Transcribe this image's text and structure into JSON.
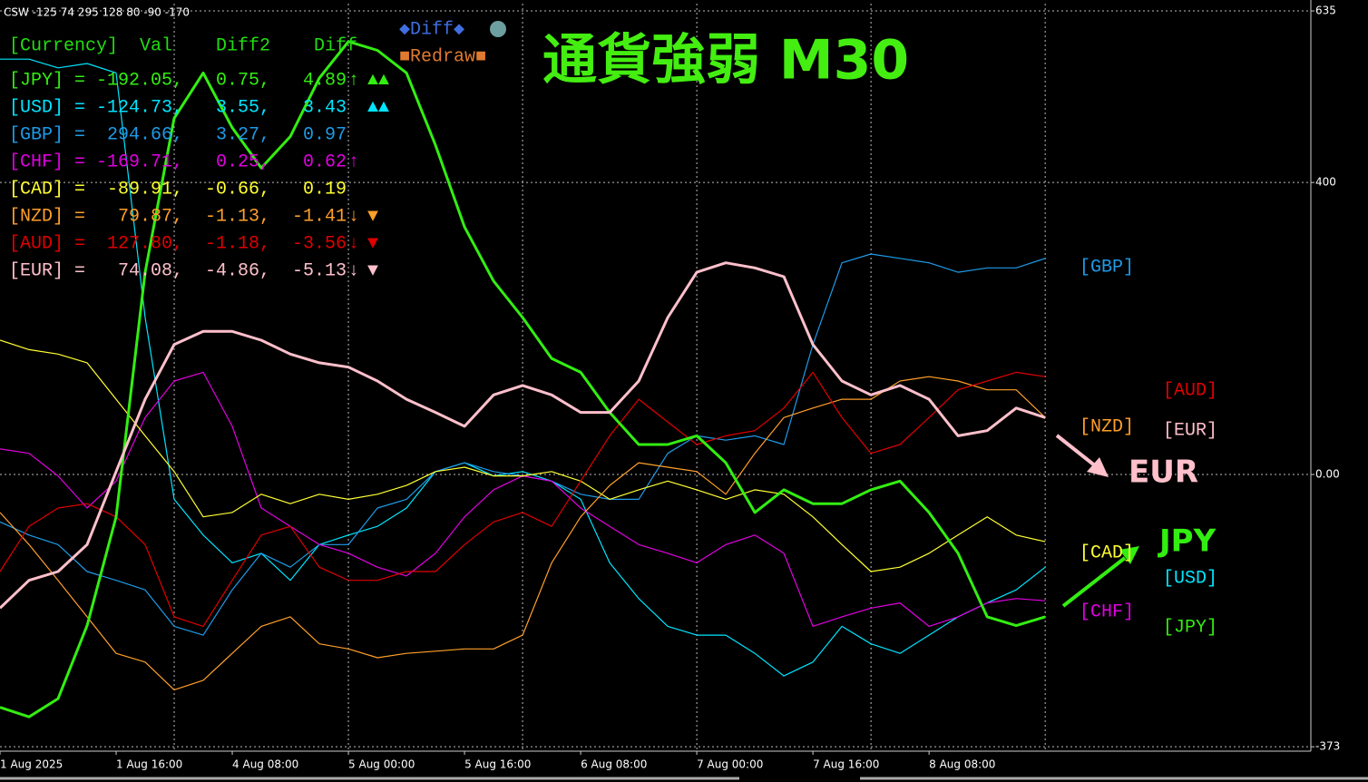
{
  "chart_data": {
    "type": "line",
    "header": "CSW -125 74 295 128 80 -90 -170",
    "title": "通貨強弱 M30",
    "x": [
      0,
      4,
      8,
      12,
      16,
      20,
      24,
      28,
      32,
      36,
      40,
      44,
      48,
      52,
      56,
      60,
      64,
      68,
      72,
      76,
      80,
      84,
      88,
      92,
      96,
      100,
      104,
      108,
      112,
      116,
      120,
      124,
      128,
      132,
      136,
      140,
      144
    ],
    "xlim": [
      0,
      180.6
    ],
    "xticks": [
      {
        "value": 0,
        "label": "1 Aug 2025"
      },
      {
        "value": 16,
        "label": "1 Aug 16:00"
      },
      {
        "value": 32,
        "label": "4 Aug 08:00"
      },
      {
        "value": 48,
        "label": "5 Aug 00:00"
      },
      {
        "value": 64,
        "label": "5 Aug 16:00"
      },
      {
        "value": 80,
        "label": "6 Aug 08:00"
      },
      {
        "value": 96,
        "label": "7 Aug 00:00"
      },
      {
        "value": 112,
        "label": "7 Aug 16:00"
      },
      {
        "value": 128,
        "label": "8 Aug 08:00"
      }
    ],
    "xgrid": [
      24,
      48,
      72,
      96,
      120,
      144
    ],
    "ylim": [
      -379,
      645
    ],
    "yticks": [
      635,
      400,
      {
        "value": 0,
        "label": "0.00"
      },
      -373
    ],
    "grid": true,
    "series": [
      {
        "name": "[JPY]",
        "color": "#33ee11",
        "values": [
          -319,
          -332,
          -307,
          -207,
          -58,
          277,
          488,
          550,
          475,
          420,
          463,
          543,
          593,
          581,
          550,
          451,
          339,
          265,
          215,
          159,
          140,
          85,
          41,
          41,
          53,
          16,
          -52,
          -21,
          -40,
          -40,
          -21,
          -9,
          -52,
          -108,
          -195,
          -207,
          -195
        ]
      },
      {
        "name": "[USD]",
        "color": "#00e5ff",
        "values": [
          569,
          569,
          557,
          563,
          550,
          215,
          -34,
          -83,
          -121,
          -108,
          -145,
          -96,
          -83,
          -71,
          -46,
          4,
          16,
          -2,
          4,
          -9,
          -34,
          -121,
          -170,
          -208,
          -220,
          -220,
          -245,
          -276,
          -257,
          -208,
          -232,
          -245,
          -220,
          -195,
          -176,
          -158,
          -127
        ]
      },
      {
        "name": "[GBP]",
        "color": "#1e9be8",
        "values": [
          -65,
          -83,
          -96,
          -133,
          -145,
          -158,
          -208,
          -220,
          -158,
          -108,
          -127,
          -96,
          -96,
          -46,
          -34,
          4,
          16,
          4,
          -2,
          -9,
          -27,
          -34,
          -34,
          29,
          53,
          47,
          53,
          41,
          178,
          290,
          302,
          296,
          290,
          277,
          283,
          283,
          296
        ]
      },
      {
        "name": "[CHF]",
        "color": "#e100e1",
        "values": [
          35,
          29,
          -2,
          -46,
          -9,
          78,
          128,
          140,
          66,
          -46,
          -71,
          -96,
          -108,
          -127,
          -139,
          -108,
          -58,
          -21,
          -2,
          -9,
          -46,
          -71,
          -96,
          -108,
          -121,
          -96,
          -83,
          -108,
          -208,
          -195,
          -183,
          -176,
          -208,
          -195,
          -176,
          -170,
          -173
        ]
      },
      {
        "name": "[CAD]",
        "color": "#ffff33",
        "values": [
          184,
          171,
          165,
          153,
          103,
          53,
          4,
          -58,
          -52,
          -27,
          -40,
          -27,
          -34,
          -27,
          -15,
          4,
          10,
          -2,
          -2,
          4,
          -9,
          -34,
          -21,
          -9,
          -21,
          -34,
          -21,
          -27,
          -58,
          -96,
          -133,
          -127,
          -108,
          -83,
          -58,
          -83,
          -92
        ]
      },
      {
        "name": "[NZD]",
        "color": "#ff9f2a",
        "values": [
          -52,
          -96,
          -145,
          -195,
          -245,
          -257,
          -295,
          -282,
          -245,
          -208,
          -195,
          -232,
          -239,
          -251,
          -245,
          -242,
          -239,
          -239,
          -220,
          -121,
          -58,
          -15,
          16,
          10,
          4,
          -27,
          29,
          78,
          91,
          103,
          103,
          128,
          134,
          128,
          116,
          116,
          78
        ]
      },
      {
        "name": "[AUD]",
        "color": "#e00000",
        "values": [
          -133,
          -71,
          -46,
          -40,
          -58,
          -96,
          -195,
          -208,
          -145,
          -83,
          -71,
          -127,
          -145,
          -145,
          -133,
          -133,
          -96,
          -65,
          -52,
          -71,
          -9,
          53,
          103,
          72,
          41,
          53,
          60,
          91,
          140,
          78,
          29,
          41,
          78,
          116,
          128,
          140,
          134
        ]
      },
      {
        "name": "[EUR]",
        "color": "#ffc0cb",
        "values": [
          -183,
          -145,
          -133,
          -96,
          4,
          103,
          178,
          196,
          196,
          184,
          165,
          153,
          147,
          128,
          103,
          85,
          66,
          109,
          122,
          109,
          85,
          85,
          128,
          215,
          277,
          290,
          283,
          271,
          178,
          128,
          109,
          122,
          103,
          53,
          60,
          91,
          78
        ]
      }
    ],
    "thick": [
      "[JPY]",
      "[EUR]"
    ],
    "annotations": [
      {
        "text": "EUR",
        "color": "#ffc0cb"
      },
      {
        "text": "JPY",
        "color": "#33ee11"
      }
    ]
  },
  "panel": {
    "header": "[Currency]  Val    Diff2    Diff",
    "rows": [
      {
        "text": "[JPY] = -192.05,   0.75,   4.89",
        "arrow": "↑",
        "signal": "▲▲"
      },
      {
        "text": "[USD] = -124.73,   3.55,   3.43",
        "arrow": "",
        "signal": "▲▲"
      },
      {
        "text": "[GBP] =  294.66,   3.27,   0.97",
        "arrow": "",
        "signal": ""
      },
      {
        "text": "[CHF] = -169.71,   0.25,   0.62",
        "arrow": "↑",
        "signal": ""
      },
      {
        "text": "[CAD] =  -89.91,  -0.66,   0.19",
        "arrow": "",
        "signal": ""
      },
      {
        "text": "[NZD] =   79.87,  -1.13,  -1.41",
        "arrow": "↓",
        "signal": "▼"
      },
      {
        "text": "[AUD] =  127.80,  -1.18,  -3.56",
        "arrow": "↓",
        "signal": "▼"
      },
      {
        "text": "[EUR] =   74.08,  -4.86,  -5.13",
        "arrow": "↓",
        "signal": "▼"
      }
    ]
  },
  "buttons": [
    "◆Diff◆",
    "■Redraw■"
  ]
}
